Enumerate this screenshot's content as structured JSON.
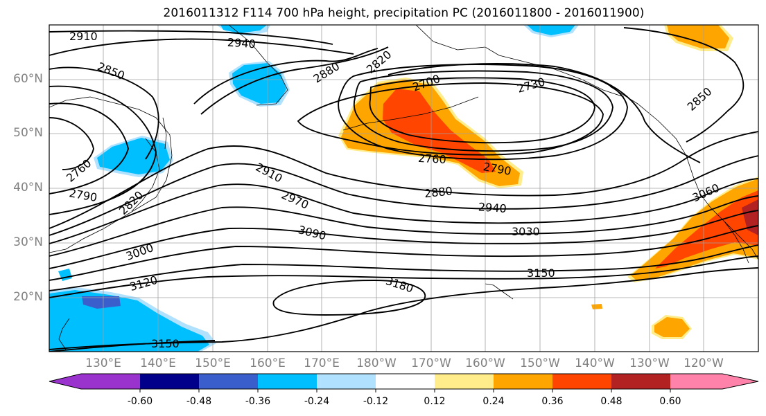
{
  "title": "2016011312 F114 700 hPa height, precipitation PC (2016011800 - 2016011900)",
  "latitude_labels": [
    "60°N",
    "50°N",
    "40°N",
    "30°N",
    "20°N"
  ],
  "longitude_labels": [
    "130°E",
    "140°E",
    "150°E",
    "160°E",
    "170°E",
    "180°W",
    "170°W",
    "160°W",
    "150°W",
    "140°W",
    "130°W",
    "120°W"
  ],
  "contour_labels": [
    "2910",
    "2940",
    "2850",
    "2880",
    "2820",
    "2700",
    "2730",
    "2850",
    "2760",
    "2790",
    "2820",
    "2910",
    "2970",
    "2760",
    "2790",
    "2880",
    "2940",
    "3030",
    "3060",
    "3090",
    "3000",
    "3120",
    "3150",
    "3180",
    "3150",
    "2760"
  ],
  "colorbar": {
    "tick_labels": [
      "-0.60",
      "-0.48",
      "-0.36",
      "-0.24",
      "-0.12",
      "0.12",
      "0.24",
      "0.36",
      "0.48",
      "0.60"
    ],
    "colors": [
      "#9a32cd",
      "#00008b",
      "#3a5fcd",
      "#00bfff",
      "#b0e2ff",
      "#ffffff",
      "#ffec8b",
      "#ffa500",
      "#ff4500",
      "#b22222",
      "#ff82ab"
    ]
  },
  "shading_colors": {
    "light_blue": "#b0e2ff",
    "deep_sky_blue": "#00bfff",
    "royal_blue": "#3a5fcd",
    "light_yellow": "#ffec8b",
    "orange": "#ffa500",
    "orange_red": "#ff4500",
    "firebrick": "#b22222"
  }
}
